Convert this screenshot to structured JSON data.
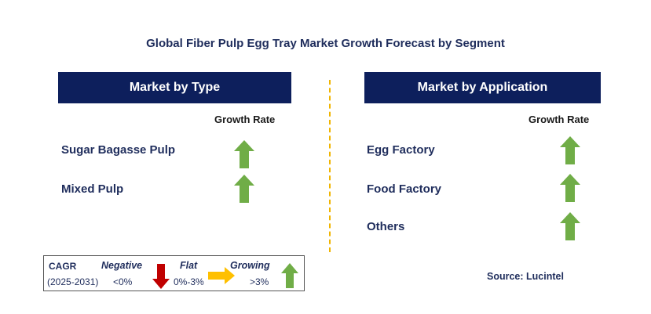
{
  "title": "Global Fiber Pulp Egg Tray Market Growth Forecast by Segment",
  "left_panel": {
    "header": "Market by Type",
    "column_label": "Growth Rate",
    "rows": [
      {
        "label": "Sugar Bagasse Pulp",
        "trend": "growing"
      },
      {
        "label": "Mixed Pulp",
        "trend": "growing"
      }
    ]
  },
  "right_panel": {
    "header": "Market by Application",
    "column_label": "Growth Rate",
    "rows": [
      {
        "label": "Egg Factory",
        "trend": "growing"
      },
      {
        "label": "Food Factory",
        "trend": "growing"
      },
      {
        "label": "Others",
        "trend": "growing"
      }
    ]
  },
  "legend": {
    "cagr_label": "CAGR",
    "period": "(2025-2031)",
    "negative": {
      "label": "Negative",
      "range": "<0%",
      "color": "#c00000",
      "icon": "down-arrow-icon"
    },
    "flat": {
      "label": "Flat",
      "range": "0%-3%",
      "color": "#ffc000",
      "icon": "right-arrow-icon"
    },
    "growing": {
      "label": "Growing",
      "range": ">3%",
      "color": "#70ad47",
      "icon": "up-arrow-icon"
    }
  },
  "source": "Source: Lucintel",
  "colors": {
    "header_bg": "#0d1f5c",
    "text_navy": "#1f2d5c",
    "divider": "#f0b400"
  }
}
